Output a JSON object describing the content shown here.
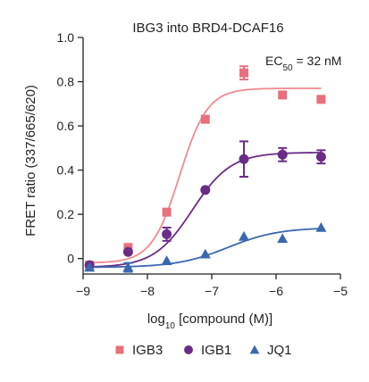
{
  "chart_data": {
    "type": "scatter",
    "title": "IBG3 into BRD4-DCAF16",
    "annotation": {
      "text": "EC",
      "subscript": "50",
      "value": " = 32 nM"
    },
    "xlabel": {
      "prefix": "log",
      "subscript": "10",
      "rest": " [compound (M)]"
    },
    "ylabel": "FRET ratio (337/665/620)",
    "xlim": [
      -9.0,
      -5.0
    ],
    "ylim": [
      -0.07,
      1.0
    ],
    "x_ticks": [
      -9,
      -8,
      -7,
      -6,
      -5
    ],
    "y_ticks": [
      0,
      0.2,
      0.4,
      0.6,
      0.8,
      1.0
    ],
    "y_tick_labels": [
      "0",
      "0.2",
      "0.4",
      "0.6",
      "0.8",
      "1.0"
    ],
    "legend_position": "bottom",
    "series": [
      {
        "name": "IGB3",
        "color": "#e8707a",
        "curve_color": "#f08a90",
        "marker": "square",
        "fit": {
          "bottom": -0.02,
          "top": 0.77,
          "log_ec50": -7.5,
          "hill": 2.0
        },
        "points": [
          {
            "x": -8.9,
            "y": -0.03,
            "err": 0.0
          },
          {
            "x": -8.3,
            "y": 0.05,
            "err": 0.0
          },
          {
            "x": -7.7,
            "y": 0.21,
            "err": 0.0
          },
          {
            "x": -7.1,
            "y": 0.63,
            "err": 0.0
          },
          {
            "x": -6.5,
            "y": 0.84,
            "err": 0.03
          },
          {
            "x": -5.9,
            "y": 0.74,
            "err": 0.0
          },
          {
            "x": -5.3,
            "y": 0.72,
            "err": 0.0
          }
        ]
      },
      {
        "name": "IGB1",
        "color": "#6a2c86",
        "curve_color": "#6a2c86",
        "marker": "circle",
        "fit": {
          "bottom": -0.04,
          "top": 0.48,
          "log_ec50": -7.3,
          "hill": 1.45
        },
        "points": [
          {
            "x": -8.9,
            "y": -0.03,
            "err": 0.0
          },
          {
            "x": -8.3,
            "y": 0.03,
            "err": 0.0
          },
          {
            "x": -7.7,
            "y": 0.11,
            "err": 0.03
          },
          {
            "x": -7.1,
            "y": 0.31,
            "err": 0.0
          },
          {
            "x": -6.5,
            "y": 0.45,
            "err": 0.08
          },
          {
            "x": -5.9,
            "y": 0.47,
            "err": 0.03
          },
          {
            "x": -5.3,
            "y": 0.46,
            "err": 0.03
          }
        ]
      },
      {
        "name": "JQ1",
        "color": "#3a68b0",
        "curve_color": "#3a68b0",
        "marker": "triangle",
        "fit": {
          "bottom": -0.04,
          "top": 0.14,
          "log_ec50": -6.75,
          "hill": 1.1
        },
        "points": [
          {
            "x": -8.9,
            "y": -0.04,
            "err": 0.0
          },
          {
            "x": -8.3,
            "y": -0.04,
            "err": 0.02
          },
          {
            "x": -7.7,
            "y": -0.01,
            "err": 0.0
          },
          {
            "x": -7.1,
            "y": 0.02,
            "err": 0.0
          },
          {
            "x": -6.5,
            "y": 0.1,
            "err": 0.0
          },
          {
            "x": -5.9,
            "y": 0.09,
            "err": 0.0
          },
          {
            "x": -5.3,
            "y": 0.14,
            "err": 0.0
          }
        ]
      }
    ]
  }
}
